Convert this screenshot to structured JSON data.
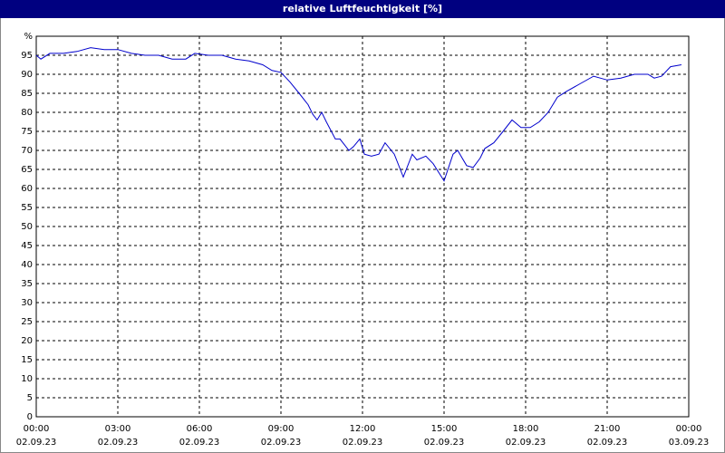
{
  "chart_data": {
    "type": "line",
    "title": "relative Luftfeuchtigkeit [%]",
    "color": "#0000cc",
    "x": [
      0,
      0.17,
      0.5,
      1,
      1.5,
      2,
      2.5,
      3,
      3.5,
      4,
      4.5,
      5,
      5.5,
      5.83,
      6.33,
      6.83,
      7.33,
      7.83,
      8.33,
      8.67,
      9,
      9.33,
      9.67,
      10,
      10.17,
      10.33,
      10.5,
      10.67,
      11,
      11.17,
      11.5,
      11.67,
      11.9,
      12.07,
      12.33,
      12.6,
      12.83,
      13.17,
      13.5,
      13.83,
      14,
      14.33,
      14.6,
      15,
      15.33,
      15.5,
      15.83,
      16.07,
      16.33,
      16.5,
      16.83,
      17.17,
      17.5,
      17.83,
      18.17,
      18.5,
      18.83,
      19.17,
      19.5,
      20,
      20.5,
      21,
      21.5,
      22,
      22.5,
      22.73,
      23,
      23.33,
      23.73
    ],
    "values": [
      95,
      94,
      95.5,
      95.5,
      96,
      97,
      96.5,
      96.5,
      95.5,
      95,
      95,
      94,
      94,
      95.5,
      95,
      95,
      94,
      93.5,
      92.5,
      91,
      90.5,
      88,
      85,
      82,
      79.5,
      78,
      80,
      77.5,
      73,
      73,
      70,
      71,
      73,
      69,
      68.5,
      69,
      72,
      69,
      63,
      69,
      67.5,
      68.5,
      66.5,
      62,
      69,
      70,
      66,
      65.5,
      68,
      70.5,
      72,
      75,
      78,
      76,
      76,
      77.5,
      80,
      84,
      85.5,
      87.5,
      89.5,
      88.5,
      89,
      90,
      90,
      89,
      89.5,
      92,
      92.5
    ],
    "xlim": [
      0,
      24
    ],
    "xticks": [
      {
        "value": 0,
        "label": "00:00",
        "date": "02.09.23"
      },
      {
        "value": 3,
        "label": "03:00",
        "date": "02.09.23"
      },
      {
        "value": 6,
        "label": "06:00",
        "date": "02.09.23"
      },
      {
        "value": 9,
        "label": "09:00",
        "date": "02.09.23"
      },
      {
        "value": 12,
        "label": "12:00",
        "date": "02.09.23"
      },
      {
        "value": 15,
        "label": "15:00",
        "date": "02.09.23"
      },
      {
        "value": 18,
        "label": "18:00",
        "date": "02.09.23"
      },
      {
        "value": 21,
        "label": "21:00",
        "date": "02.09.23"
      },
      {
        "value": 24,
        "label": "00:00",
        "date": "03.09.23"
      }
    ],
    "ylim": [
      0,
      100
    ],
    "yticks": [
      0,
      5,
      10,
      15,
      20,
      25,
      30,
      35,
      40,
      45,
      50,
      55,
      60,
      65,
      70,
      75,
      80,
      85,
      90,
      95,
      {
        "value": 100,
        "label": "%"
      }
    ],
    "grid": true
  }
}
